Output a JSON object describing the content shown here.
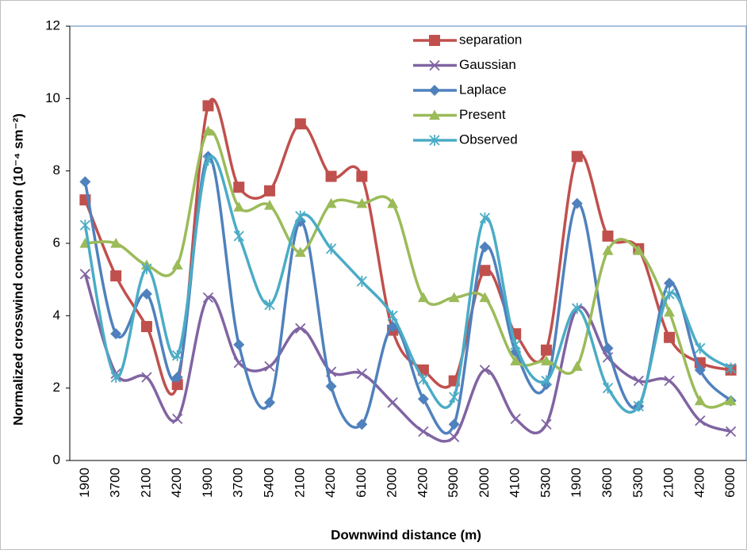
{
  "chart_data": {
    "type": "line",
    "x_label": "Downwind distance (m)",
    "y_label": "Normalized crosswind concentration (10⁻⁴ sm⁻²)",
    "categories": [
      "1900",
      "3700",
      "2100",
      "4200",
      "1900",
      "3700",
      "5400",
      "2100",
      "4200",
      "6100",
      "2000",
      "4200",
      "5900",
      "2000",
      "4100",
      "5300",
      "1900",
      "3600",
      "5300",
      "2100",
      "4200",
      "6000"
    ],
    "ylim": [
      0,
      12
    ],
    "yticks": [
      0,
      2,
      4,
      6,
      8,
      10,
      12
    ],
    "smooth": true,
    "series": [
      {
        "name": "separation",
        "color": "#c0504d",
        "marker": "square",
        "values": [
          7.2,
          5.1,
          3.7,
          2.1,
          9.8,
          7.55,
          7.45,
          9.3,
          7.85,
          7.85,
          3.6,
          2.5,
          2.2,
          5.25,
          3.5,
          3.05,
          8.4,
          6.2,
          5.85,
          3.4,
          2.7,
          2.5
        ]
      },
      {
        "name": "Gaussian",
        "color": "#8064a2",
        "marker": "x",
        "values": [
          5.15,
          2.4,
          2.3,
          1.15,
          4.5,
          2.7,
          2.6,
          3.65,
          2.45,
          2.4,
          1.6,
          0.8,
          0.65,
          2.5,
          1.15,
          1.0,
          4.2,
          2.85,
          2.2,
          2.2,
          1.1,
          0.8
        ]
      },
      {
        "name": "Laplace",
        "color": "#4f81bd",
        "marker": "diamond",
        "values": [
          7.7,
          3.5,
          4.6,
          2.3,
          8.4,
          3.2,
          1.6,
          6.6,
          2.05,
          1.0,
          3.7,
          1.7,
          1.0,
          5.9,
          3.0,
          2.1,
          7.1,
          3.1,
          1.5,
          4.9,
          2.5,
          1.65
        ]
      },
      {
        "name": "Present",
        "color": "#9bbb59",
        "marker": "triangle",
        "values": [
          6.0,
          6.0,
          5.4,
          5.4,
          9.1,
          7.0,
          7.05,
          5.75,
          7.1,
          7.1,
          7.1,
          4.5,
          4.5,
          4.5,
          2.75,
          2.75,
          2.6,
          5.8,
          5.8,
          4.1,
          1.65,
          1.65
        ]
      },
      {
        "name": "Observed",
        "color": "#4bacc6",
        "marker": "asterisk",
        "values": [
          6.5,
          2.3,
          5.3,
          2.9,
          8.3,
          6.2,
          4.3,
          6.75,
          5.85,
          4.95,
          4.0,
          2.25,
          1.75,
          6.7,
          3.2,
          2.2,
          4.2,
          2.0,
          1.5,
          4.6,
          3.1,
          2.55
        ]
      }
    ]
  }
}
